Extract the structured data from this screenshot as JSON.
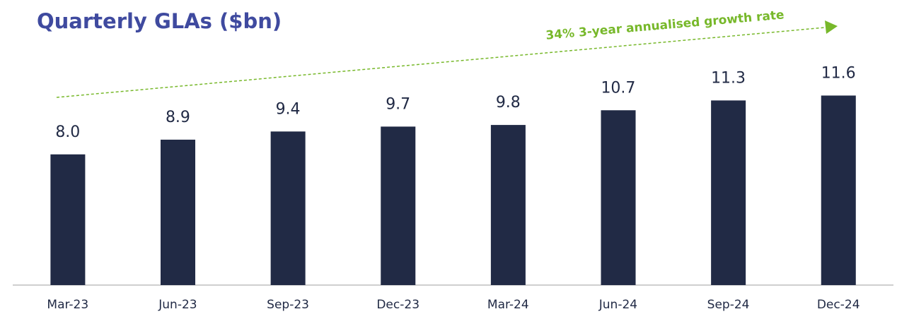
{
  "chart_data": {
    "type": "bar",
    "title": "Quarterly GLAs ($bn)",
    "annotation": "34% 3-year annualised growth rate",
    "categories": [
      "Mar-23",
      "Jun-23",
      "Sep-23",
      "Dec-23",
      "Mar-24",
      "Jun-24",
      "Sep-24",
      "Dec-24"
    ],
    "values": [
      8.0,
      8.9,
      9.4,
      9.7,
      9.8,
      10.7,
      11.3,
      11.6
    ],
    "value_labels": [
      "8.0",
      "8.9",
      "9.4",
      "9.7",
      "9.8",
      "10.7",
      "11.3",
      "11.6"
    ],
    "color": "#212a45",
    "ylim": [
      0,
      13
    ]
  }
}
